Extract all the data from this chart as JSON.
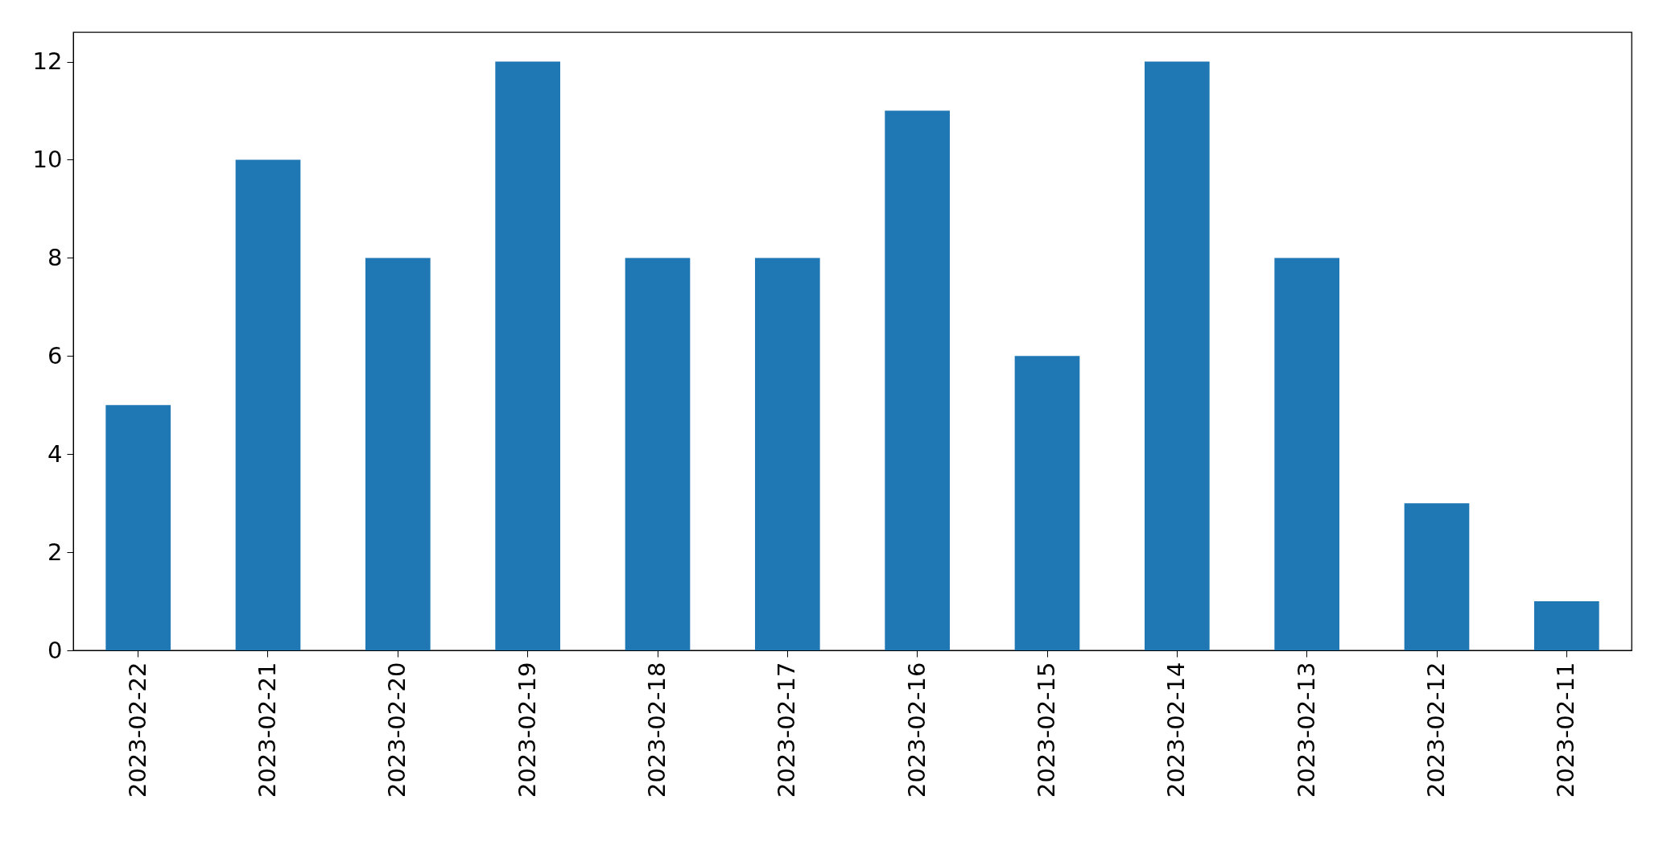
{
  "chart_data": {
    "type": "bar",
    "categories": [
      "2023-02-22",
      "2023-02-21",
      "2023-02-20",
      "2023-02-19",
      "2023-02-18",
      "2023-02-17",
      "2023-02-16",
      "2023-02-15",
      "2023-02-14",
      "2023-02-13",
      "2023-02-12",
      "2023-02-11"
    ],
    "values": [
      5,
      10,
      8,
      12,
      8,
      8,
      11,
      6,
      12,
      8,
      3,
      1
    ],
    "color": "#1f77b4",
    "ylim": [
      0,
      12.6
    ],
    "yticks": [
      0,
      2,
      4,
      6,
      8,
      10,
      12
    ],
    "grid": false
  }
}
